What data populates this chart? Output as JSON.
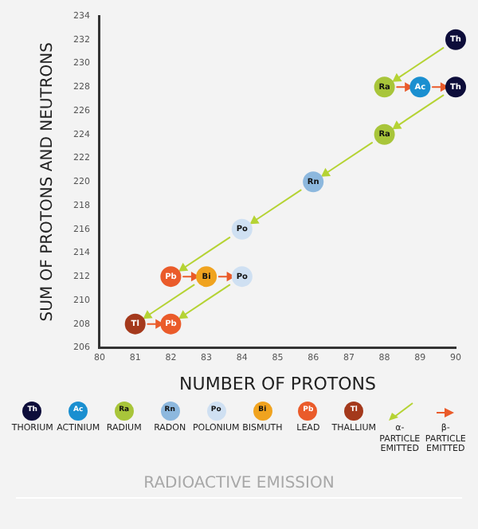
{
  "chart_data": {
    "type": "scatter",
    "xlabel": "NUMBER OF PROTONS",
    "ylabel": "SUM OF PROTONS AND NEUTRONS",
    "xlim": [
      80,
      90
    ],
    "ylim": [
      206,
      234
    ],
    "xticks": [
      80,
      81,
      82,
      83,
      84,
      85,
      86,
      87,
      88,
      89,
      90
    ],
    "yticks": [
      206,
      208,
      210,
      212,
      214,
      216,
      218,
      220,
      222,
      224,
      226,
      228,
      230,
      232,
      234
    ],
    "grid": false,
    "legend": "bottom",
    "marker": "circle",
    "annotations": [
      "RADIOACTIVE EMISSION"
    ],
    "series": [
      {
        "name": "THORIUM",
        "color": "#0d0d3a",
        "x": [
          90,
          90
        ],
        "values": [
          232,
          228
        ],
        "value_labels": [
          "Th",
          "Th"
        ]
      },
      {
        "name": "ACTINIUM",
        "color": "#1a8fd0",
        "x": [
          89
        ],
        "values": [
          228
        ],
        "value_labels": [
          "Ac"
        ]
      },
      {
        "name": "RADIUM",
        "color": "#a8c53a",
        "x": [
          88,
          88
        ],
        "values": [
          228,
          224
        ],
        "value_labels": [
          "Ra",
          "Ra"
        ]
      },
      {
        "name": "RADON",
        "color": "#8db8de",
        "x": [
          86
        ],
        "values": [
          220
        ],
        "value_labels": [
          "Rn"
        ]
      },
      {
        "name": "POLONIUM",
        "color": "#cfe0f2",
        "x": [
          84,
          84
        ],
        "values": [
          216,
          212
        ],
        "value_labels": [
          "Po",
          "Po"
        ]
      },
      {
        "name": "BISMUTH",
        "color": "#f0a31f",
        "x": [
          83
        ],
        "values": [
          212
        ],
        "value_labels": [
          "Bi"
        ]
      },
      {
        "name": "LEAD",
        "color": "#ea5b2a",
        "x": [
          82,
          82
        ],
        "values": [
          212,
          208
        ],
        "value_labels": [
          "Pb",
          "Pb"
        ]
      },
      {
        "name": "THALLIUM",
        "color": "#a4391c",
        "x": [
          81
        ],
        "values": [
          208
        ],
        "value_labels": [
          "Tl"
        ]
      },
      {
        "name": "α-PARTICLE EMITTED",
        "type": "line",
        "marker": "triangle",
        "color": "#b5d334",
        "x": [
          89.65,
          88.35,
          null,
          87.65,
          86.35,
          null,
          85.65,
          84.35,
          null,
          83.65,
          82.35
        ],
        "values": [
          231.3,
          228.7,
          null,
          223.3,
          220.7,
          null,
          219.3,
          216.7,
          null,
          215.3,
          212.7
        ]
      },
      {
        "type": "line",
        "marker": "triangle",
        "color": "#b5d334",
        "x": [
          89.65,
          88.35,
          null,
          82.65,
          81.35
        ],
        "values": [
          227.3,
          224.7,
          null,
          211.3,
          208.7
        ]
      },
      {
        "type": "line",
        "marker": "triangle",
        "color": "#b5d334",
        "x": [
          83.65,
          82.35
        ],
        "values": [
          211.3,
          208.7
        ]
      },
      {
        "name": "β-PARTICLE EMITTED",
        "type": "line",
        "marker": "triangle",
        "color": "#ea5b2a",
        "x": [
          88.35,
          88.65,
          null,
          89.35,
          89.65,
          null,
          82.35,
          82.65,
          null,
          83.35,
          83.65,
          null,
          81.35,
          81.65
        ],
        "values": [
          228,
          228,
          null,
          228,
          228,
          null,
          212,
          212,
          null,
          212,
          212,
          null,
          208,
          208
        ]
      }
    ]
  }
}
